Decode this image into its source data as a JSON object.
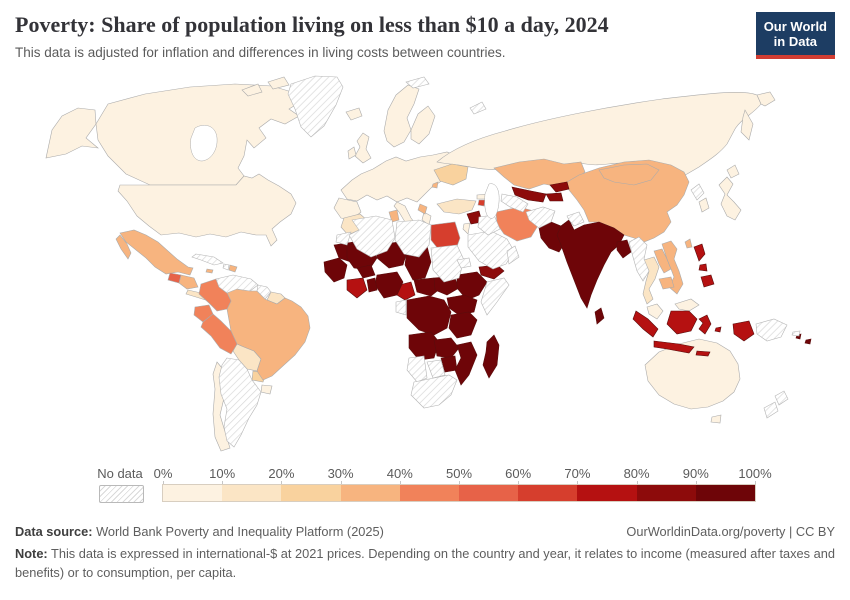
{
  "header": {
    "title": "Poverty: Share of population living on less than $10 a day, 2024",
    "subtitle": "This data is adjusted for inflation and differences in living costs between countries.",
    "logo_line1": "Our World",
    "logo_line2": "in Data",
    "logo_bg": "#1d3d63",
    "logo_accent": "#d13d33"
  },
  "legend": {
    "no_data_label": "No data",
    "tick_labels": [
      "0%",
      "10%",
      "20%",
      "30%",
      "40%",
      "50%",
      "60%",
      "70%",
      "80%",
      "90%",
      "100%"
    ],
    "colors": [
      "#FDF2E1",
      "#FBE5C5",
      "#F9D29E",
      "#F7B47F",
      "#F1825A",
      "#E76248",
      "#D63E2D",
      "#B51111",
      "#8D0B0B",
      "#6E0508"
    ]
  },
  "map": {
    "palette": {
      "b1": "#FDF2E1",
      "b2": "#FBE5C5",
      "b3": "#F9D29E",
      "b4": "#F7B47F",
      "b5": "#F1825A",
      "b6": "#E76248",
      "b7": "#D63E2D",
      "b8": "#B51111",
      "b9": "#8D0B0B",
      "b10": "#6E0508",
      "sea": "#ffffff",
      "hatch_line": "#d8d8d8"
    }
  },
  "chart_data": {
    "type": "heatmap",
    "subtype": "choropleth-world-map",
    "title": "Poverty: Share of population living on less than $10 a day, 2024",
    "unit": "% of population",
    "bins": [
      "0-10%",
      "10-20%",
      "20-30%",
      "30-40%",
      "40-50%",
      "50-60%",
      "60-70%",
      "70-80%",
      "80-90%",
      "90-100%",
      "No data"
    ],
    "legend_position": "bottom",
    "regions": [
      {
        "name": "United States",
        "bin": "0-10%"
      },
      {
        "name": "Canada",
        "bin": "0-10%"
      },
      {
        "name": "Chile",
        "bin": "0-10%"
      },
      {
        "name": "Uruguay",
        "bin": "0-10%"
      },
      {
        "name": "Western Europe",
        "bin": "0-10%"
      },
      {
        "name": "Scandinavia",
        "bin": "0-10%"
      },
      {
        "name": "Russia",
        "bin": "0-10%"
      },
      {
        "name": "Japan",
        "bin": "0-10%"
      },
      {
        "name": "South Korea",
        "bin": "0-10%"
      },
      {
        "name": "Malaysia",
        "bin": "0-10%"
      },
      {
        "name": "Australia",
        "bin": "0-10%"
      },
      {
        "name": "Iceland",
        "bin": "0-10%"
      },
      {
        "name": "Georgia",
        "bin": "0-10%"
      },
      {
        "name": "Israel",
        "bin": "0-10%"
      },
      {
        "name": "Suriname",
        "bin": "10-20%"
      },
      {
        "name": "Turkey",
        "bin": "10-20%"
      },
      {
        "name": "Thailand",
        "bin": "10-20%"
      },
      {
        "name": "Costa Rica",
        "bin": "10-20%"
      },
      {
        "name": "Panama",
        "bin": "10-20%"
      },
      {
        "name": "Morocco",
        "bin": "10-20%"
      },
      {
        "name": "Bhutan",
        "bin": "10-20%"
      },
      {
        "name": "Bolivia",
        "bin": "10-20%"
      },
      {
        "name": "Ukraine",
        "bin": "20-30%"
      },
      {
        "name": "Paraguay",
        "bin": "20-30%"
      },
      {
        "name": "Mexico",
        "bin": "30-40%"
      },
      {
        "name": "Brazil",
        "bin": "30-40%"
      },
      {
        "name": "China",
        "bin": "30-40%"
      },
      {
        "name": "Mongolia",
        "bin": "30-40%"
      },
      {
        "name": "Kazakhstan",
        "bin": "30-40%"
      },
      {
        "name": "Vietnam",
        "bin": "30-40%"
      },
      {
        "name": "Laos",
        "bin": "30-40%"
      },
      {
        "name": "Cambodia",
        "bin": "30-40%"
      },
      {
        "name": "Tunisia",
        "bin": "30-40%"
      },
      {
        "name": "Honduras",
        "bin": "30-40%"
      },
      {
        "name": "Nicaragua",
        "bin": "30-40%"
      },
      {
        "name": "Dominican Republic",
        "bin": "30-40%"
      },
      {
        "name": "Jamaica",
        "bin": "30-40%"
      },
      {
        "name": "Albania",
        "bin": "30-40%"
      },
      {
        "name": "Azerbaijan",
        "bin": "30-40%"
      },
      {
        "name": "Taiwan",
        "bin": "30-40%"
      },
      {
        "name": "Moldova",
        "bin": "30-40%"
      },
      {
        "name": "Colombia",
        "bin": "40-50%"
      },
      {
        "name": "Ecuador",
        "bin": "40-50%"
      },
      {
        "name": "Peru",
        "bin": "40-50%"
      },
      {
        "name": "Iran",
        "bin": "40-50%"
      },
      {
        "name": "Guatemala",
        "bin": "50-60%"
      },
      {
        "name": "Egypt",
        "bin": "60-70%"
      },
      {
        "name": "Armenia",
        "bin": "60-70%"
      },
      {
        "name": "Nepal",
        "bin": "70-80%"
      },
      {
        "name": "Indonesia",
        "bin": "70-80%"
      },
      {
        "name": "Philippines",
        "bin": "70-80%"
      },
      {
        "name": "Cote d'Ivoire",
        "bin": "70-80%"
      },
      {
        "name": "Ghana",
        "bin": "70-80%"
      },
      {
        "name": "Cameroon",
        "bin": "70-80%"
      },
      {
        "name": "Syria",
        "bin": "90-100%"
      },
      {
        "name": "Yemen",
        "bin": "90-100%"
      },
      {
        "name": "Uzbekistan",
        "bin": "90-100%"
      },
      {
        "name": "Kyrgyzstan",
        "bin": "90-100%"
      },
      {
        "name": "Tajikistan",
        "bin": "90-100%"
      },
      {
        "name": "Pakistan",
        "bin": "90-100%"
      },
      {
        "name": "India",
        "bin": "90-100%"
      },
      {
        "name": "Bangladesh",
        "bin": "90-100%"
      },
      {
        "name": "Sri Lanka",
        "bin": "90-100%"
      },
      {
        "name": "Mauritania",
        "bin": "90-100%"
      },
      {
        "name": "Senegal",
        "bin": "90-100%"
      },
      {
        "name": "Guinea",
        "bin": "90-100%"
      },
      {
        "name": "Mali",
        "bin": "90-100%"
      },
      {
        "name": "Burkina Faso",
        "bin": "90-100%"
      },
      {
        "name": "Niger",
        "bin": "90-100%"
      },
      {
        "name": "Chad",
        "bin": "90-100%"
      },
      {
        "name": "Nigeria",
        "bin": "90-100%"
      },
      {
        "name": "Togo",
        "bin": "90-100%"
      },
      {
        "name": "Benin",
        "bin": "90-100%"
      },
      {
        "name": "Central African Republic",
        "bin": "90-100%"
      },
      {
        "name": "South Sudan",
        "bin": "90-100%"
      },
      {
        "name": "Ethiopia",
        "bin": "90-100%"
      },
      {
        "name": "Uganda",
        "bin": "90-100%"
      },
      {
        "name": "Kenya",
        "bin": "90-100%"
      },
      {
        "name": "DR Congo",
        "bin": "90-100%"
      },
      {
        "name": "Tanzania",
        "bin": "90-100%"
      },
      {
        "name": "Angola",
        "bin": "90-100%"
      },
      {
        "name": "Zambia",
        "bin": "90-100%"
      },
      {
        "name": "Zimbabwe",
        "bin": "90-100%"
      },
      {
        "name": "Malawi",
        "bin": "90-100%"
      },
      {
        "name": "Mozambique",
        "bin": "90-100%"
      },
      {
        "name": "Madagascar",
        "bin": "90-100%"
      },
      {
        "name": "Fiji",
        "bin": "90-100%"
      },
      {
        "name": "Vanuatu",
        "bin": "90-100%"
      },
      {
        "name": "Greenland",
        "bin": "No data"
      },
      {
        "name": "Cuba",
        "bin": "No data"
      },
      {
        "name": "Haiti",
        "bin": "No data"
      },
      {
        "name": "Venezuela",
        "bin": "No data"
      },
      {
        "name": "Guyana",
        "bin": "No data"
      },
      {
        "name": "Argentina",
        "bin": "No data"
      },
      {
        "name": "Algeria",
        "bin": "No data"
      },
      {
        "name": "Libya",
        "bin": "No data"
      },
      {
        "name": "Western Sahara",
        "bin": "No data"
      },
      {
        "name": "Sudan",
        "bin": "No data"
      },
      {
        "name": "Eritrea",
        "bin": "No data"
      },
      {
        "name": "Somalia",
        "bin": "No data"
      },
      {
        "name": "Gabon",
        "bin": "No data"
      },
      {
        "name": "Namibia",
        "bin": "No data"
      },
      {
        "name": "Botswana",
        "bin": "No data"
      },
      {
        "name": "South Africa",
        "bin": "No data"
      },
      {
        "name": "Saudi Arabia",
        "bin": "No data"
      },
      {
        "name": "Iraq",
        "bin": "No data"
      },
      {
        "name": "Oman",
        "bin": "No data"
      },
      {
        "name": "Turkmenistan",
        "bin": "No data"
      },
      {
        "name": "Afghanistan",
        "bin": "No data"
      },
      {
        "name": "Myanmar",
        "bin": "No data"
      },
      {
        "name": "North Korea",
        "bin": "No data"
      },
      {
        "name": "Papua New Guinea",
        "bin": "No data"
      },
      {
        "name": "Solomon Islands",
        "bin": "No data"
      },
      {
        "name": "New Zealand",
        "bin": "No data"
      }
    ]
  },
  "footer": {
    "source_label": "Data source:",
    "source_text": " World Bank Poverty and Inequality Platform (2025)",
    "link_text": "OurWorldinData.org/poverty | CC BY",
    "note_label": "Note:",
    "note_text": " This data is expressed in international-$ at 2021 prices. Depending on the country and year, it relates to income (measured after taxes and benefits) or to consumption, per capita."
  }
}
